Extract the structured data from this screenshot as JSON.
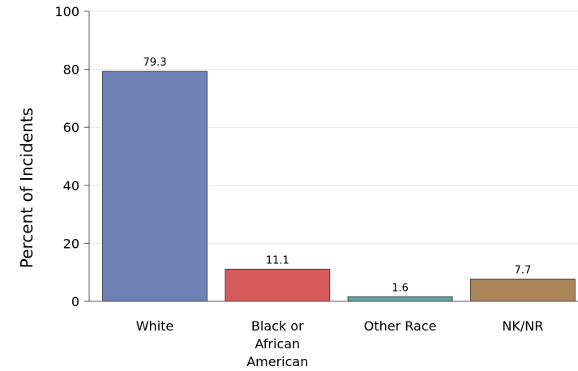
{
  "chart_data": {
    "type": "bar",
    "categories": [
      "White",
      "Black or African American",
      "Other Race",
      "NK/NR"
    ],
    "category_lines": [
      [
        "White"
      ],
      [
        "Black or",
        "African",
        "American"
      ],
      [
        "Other Race"
      ],
      [
        "NK/NR"
      ]
    ],
    "values": [
      79.3,
      11.1,
      1.6,
      7.7
    ],
    "value_labels": [
      "79.3",
      "11.1",
      "1.6",
      "7.7"
    ],
    "colors": [
      "#6f80b5",
      "#d65b5b",
      "#5fa79e",
      "#a98559"
    ],
    "title": "",
    "xlabel": "",
    "ylabel": "Percent of Incidents",
    "ylim": [
      0,
      100
    ],
    "yticks": [
      0,
      20,
      40,
      60,
      80,
      100
    ],
    "ytick_labels": [
      "0",
      "20",
      "40",
      "60",
      "80",
      "100"
    ],
    "grid": true
  }
}
